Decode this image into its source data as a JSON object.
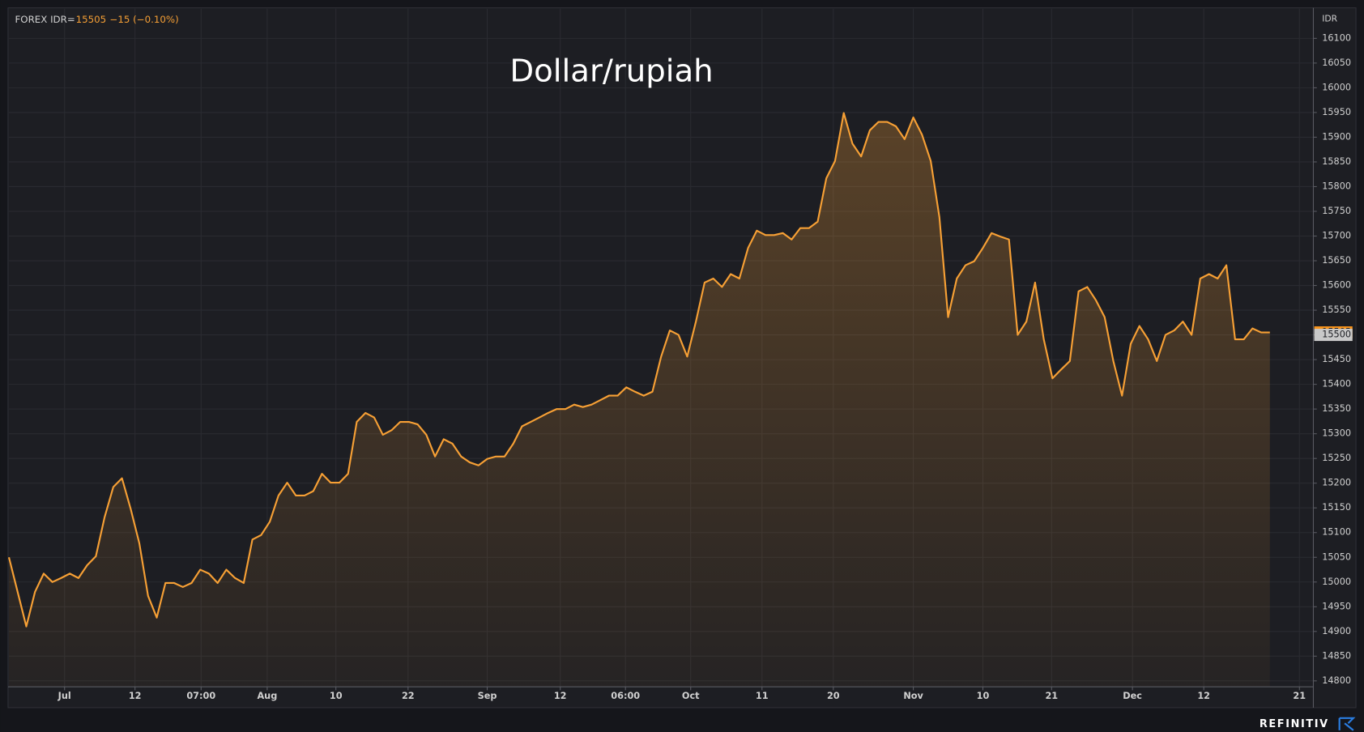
{
  "header": {
    "symbol": "FOREX IDR=",
    "last": 15505,
    "change": "−15 (−0.10%)"
  },
  "chart_data": {
    "type": "area-line",
    "title": "Dollar/rupiah",
    "y_axis_label": "IDR",
    "color": "#f7a035",
    "grid": true,
    "x": [
      0,
      1,
      2,
      3,
      4,
      5,
      6,
      7,
      8,
      9,
      10,
      11,
      12,
      13,
      14,
      15,
      16,
      17,
      18,
      19,
      20,
      21,
      22,
      23,
      24,
      25,
      26,
      27,
      28,
      29,
      30,
      31,
      32,
      33,
      34,
      35,
      36,
      37,
      38,
      39,
      40,
      41,
      42,
      43,
      44,
      45,
      46,
      47,
      48,
      49,
      50,
      51,
      52,
      53,
      54,
      55,
      56,
      57,
      58,
      59,
      60,
      61,
      62,
      63,
      64,
      65,
      66,
      67,
      68,
      69,
      70,
      71,
      72,
      73,
      74,
      75,
      76,
      77,
      78,
      79,
      80,
      81,
      82,
      83,
      84,
      85,
      86,
      87,
      88,
      89,
      90,
      91,
      92,
      93,
      94,
      95,
      96,
      97,
      98,
      99,
      100,
      101,
      102,
      103,
      104,
      105,
      106,
      107,
      108,
      109,
      110,
      111,
      112,
      113,
      114,
      115,
      116,
      117,
      118,
      119,
      120,
      121,
      122,
      123,
      124,
      125,
      126,
      127,
      128,
      129,
      130,
      131,
      132,
      133,
      134,
      135,
      136,
      137,
      138,
      139,
      140,
      141,
      142,
      143,
      144,
      145
    ],
    "values": [
      15050,
      14980,
      14910,
      14980,
      15017,
      15000,
      15008,
      15017,
      15008,
      15034,
      15052,
      15131,
      15192,
      15210,
      15148,
      15078,
      14972,
      14928,
      14998,
      14998,
      14990,
      14998,
      15025,
      15017,
      14998,
      15025,
      15008,
      14998,
      15086,
      15095,
      15122,
      15175,
      15201,
      15175,
      15175,
      15184,
      15219,
      15201,
      15201,
      15219,
      15324,
      15342,
      15333,
      15298,
      15307,
      15324,
      15324,
      15319,
      15298,
      15254,
      15289,
      15280,
      15254,
      15242,
      15236,
      15249,
      15254,
      15254,
      15280,
      15315,
      15324,
      15333,
      15342,
      15350,
      15350,
      15359,
      15354,
      15359,
      15368,
      15377,
      15377,
      15394,
      15385,
      15377,
      15385,
      15456,
      15509,
      15500,
      15456,
      15527,
      15606,
      15614,
      15597,
      15623,
      15614,
      15676,
      15711,
      15702,
      15702,
      15706,
      15693,
      15716,
      15716,
      15729,
      15817,
      15852,
      15949,
      15887,
      15861,
      15914,
      15931,
      15931,
      15922,
      15896,
      15940,
      15905,
      15852,
      15738,
      15536,
      15614,
      15641,
      15649,
      15676,
      15706,
      15699,
      15693,
      15500,
      15527,
      15606,
      15491,
      15412,
      15430,
      15447,
      15588,
      15597,
      15570,
      15536,
      15447,
      15377,
      15482,
      15518,
      15491,
      15447,
      15500,
      15509,
      15527,
      15500,
      15614,
      15623,
      15614,
      15641,
      15491,
      15491,
      15513,
      15505,
      15505
    ],
    "xlim": [
      0,
      150
    ],
    "xticks": [
      {
        "value": 6.4,
        "label": "Jul"
      },
      {
        "value": 14.5,
        "label": "12"
      },
      {
        "value": 22.1,
        "label": "07:00"
      },
      {
        "value": 29.7,
        "label": "Aug"
      },
      {
        "value": 37.6,
        "label": "10"
      },
      {
        "value": 45.9,
        "label": "22"
      },
      {
        "value": 55,
        "label": "Sep"
      },
      {
        "value": 63.4,
        "label": "12"
      },
      {
        "value": 70.9,
        "label": "06:00"
      },
      {
        "value": 78.4,
        "label": "Oct"
      },
      {
        "value": 86.6,
        "label": "11"
      },
      {
        "value": 94.8,
        "label": "20"
      },
      {
        "value": 104,
        "label": "Nov"
      },
      {
        "value": 112,
        "label": "10"
      },
      {
        "value": 119.9,
        "label": "21"
      },
      {
        "value": 129.2,
        "label": "Dec"
      },
      {
        "value": 137.4,
        "label": "12"
      },
      {
        "value": 148.4,
        "label": "21"
      }
    ],
    "ylim": [
      14788,
      16160
    ],
    "yticks": [
      14800,
      14850,
      14900,
      14950,
      15000,
      15050,
      15100,
      15150,
      15200,
      15250,
      15300,
      15350,
      15400,
      15450,
      15500,
      15550,
      15600,
      15650,
      15700,
      15750,
      15800,
      15850,
      15900,
      15950,
      16000,
      16050,
      16100
    ],
    "price_tags": [
      {
        "value": 15505,
        "color": "#f7941d"
      },
      {
        "value": 15500,
        "color": "#c9c9c9"
      }
    ]
  },
  "footer": {
    "brand": "REFINITIV"
  }
}
